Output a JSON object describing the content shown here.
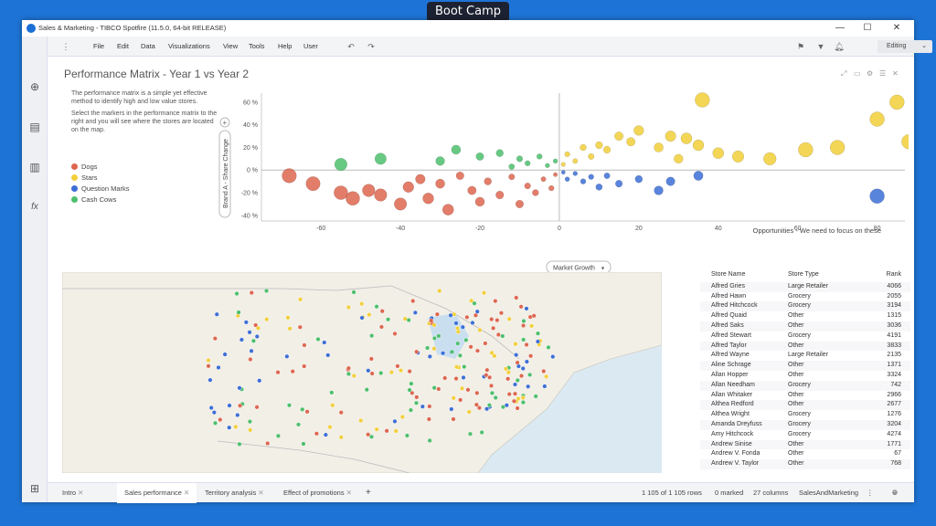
{
  "overlay_title": "Boot Camp",
  "window": {
    "title": "Sales  & Marketing - TIBCO Spotfire (11.5.0, 64-bit RELEASE)",
    "minimize": "—",
    "maximize": "☐",
    "close": "✕"
  },
  "menu": {
    "items": [
      "File",
      "Edit",
      "Data",
      "Visualizations",
      "View",
      "Tools",
      "Help",
      "User"
    ],
    "mode": "Editing"
  },
  "visual": {
    "title": "Performance Matrix - Year 1 vs Year 2",
    "desc1": "The performance matrix is a simple yet effective method to identify high and low value stores.",
    "desc2": "Select the markers in the performance matrix to the right and you will see where the stores are located on the map.",
    "legend": [
      {
        "label": "Dogs",
        "color": "#dd6650"
      },
      {
        "label": "Stars",
        "color": "#f2cf3a"
      },
      {
        "label": "Question Marks",
        "color": "#3c6ed6"
      },
      {
        "label": "Cash Cows",
        "color": "#4cbf6c"
      }
    ],
    "annotation": "Opportunities - We need to focus on these",
    "x_selector": "Market Growth",
    "y_selector": "Brand A - Share Change"
  },
  "chart_data": {
    "type": "scatter",
    "xlabel": "Market Growth",
    "ylabel": "Brand A - Share Change",
    "xlim": [
      -75,
      87
    ],
    "ylim": [
      -45,
      68
    ],
    "x_ticks": [
      "-60",
      "-40",
      "-20",
      "0",
      "20",
      "40",
      "60",
      "80"
    ],
    "y_ticks": [
      "60 %",
      "40 %",
      "20 %",
      "0 %",
      "-20 %",
      "-40 %"
    ],
    "series": [
      {
        "name": "Dogs",
        "points": [
          [
            -68,
            -5
          ],
          [
            -62,
            -12
          ],
          [
            -55,
            -20
          ],
          [
            -52,
            -25
          ],
          [
            -48,
            -18
          ],
          [
            -45,
            -22
          ],
          [
            -40,
            -30
          ],
          [
            -38,
            -15
          ],
          [
            -35,
            -8
          ],
          [
            -33,
            -25
          ],
          [
            -30,
            -12
          ],
          [
            -28,
            -35
          ],
          [
            -25,
            -5
          ],
          [
            -22,
            -18
          ],
          [
            -20,
            -28
          ],
          [
            -18,
            -10
          ],
          [
            -15,
            -22
          ],
          [
            -12,
            -6
          ],
          [
            -10,
            -30
          ],
          [
            -8,
            -14
          ],
          [
            -6,
            -20
          ],
          [
            -4,
            -8
          ],
          [
            -2,
            -16
          ],
          [
            -1,
            -4
          ]
        ]
      },
      {
        "name": "Stars",
        "points": [
          [
            36,
            62
          ],
          [
            85,
            60
          ],
          [
            80,
            45
          ],
          [
            88,
            25
          ],
          [
            53,
            10
          ],
          [
            62,
            18
          ],
          [
            70,
            20
          ],
          [
            40,
            15
          ],
          [
            35,
            22
          ],
          [
            32,
            28
          ],
          [
            28,
            30
          ],
          [
            25,
            20
          ],
          [
            20,
            35
          ],
          [
            18,
            25
          ],
          [
            15,
            30
          ],
          [
            12,
            18
          ],
          [
            10,
            22
          ],
          [
            8,
            12
          ],
          [
            6,
            20
          ],
          [
            4,
            8
          ],
          [
            2,
            14
          ],
          [
            1,
            5
          ],
          [
            30,
            10
          ],
          [
            45,
            12
          ]
        ]
      },
      {
        "name": "Question Marks",
        "points": [
          [
            80,
            -23
          ],
          [
            28,
            -10
          ],
          [
            25,
            -18
          ],
          [
            20,
            -8
          ],
          [
            15,
            -12
          ],
          [
            12,
            -5
          ],
          [
            10,
            -15
          ],
          [
            8,
            -6
          ],
          [
            6,
            -10
          ],
          [
            4,
            -3
          ],
          [
            2,
            -8
          ],
          [
            1,
            -2
          ],
          [
            35,
            -5
          ]
        ]
      },
      {
        "name": "Cash Cows",
        "points": [
          [
            -55,
            5
          ],
          [
            -45,
            10
          ],
          [
            -30,
            8
          ],
          [
            -26,
            18
          ],
          [
            -20,
            12
          ],
          [
            -15,
            15
          ],
          [
            -10,
            10
          ],
          [
            -8,
            6
          ],
          [
            -5,
            12
          ],
          [
            -3,
            4
          ],
          [
            -1,
            8
          ],
          [
            -12,
            3
          ]
        ]
      }
    ]
  },
  "table": {
    "headers": [
      "Store Name",
      "Store Type",
      "Rank"
    ],
    "rows": [
      [
        "Alfred Gries",
        "Large Retailer",
        "4066"
      ],
      [
        "Alfred Hawn",
        "Grocery",
        "2055"
      ],
      [
        "Alfred Hitchcock",
        "Grocery",
        "3194"
      ],
      [
        "Alfred Quaid",
        "Other",
        "1315"
      ],
      [
        "Alfred Saks",
        "Other",
        "3036"
      ],
      [
        "Alfred Stewart",
        "Grocery",
        "4191"
      ],
      [
        "Alfred Taylor",
        "Other",
        "3833"
      ],
      [
        "Alfred Wayne",
        "Large Retailer",
        "2135"
      ],
      [
        "Aline Schrage",
        "Other",
        "1371"
      ],
      [
        "Allan Hopper",
        "Other",
        "3324"
      ],
      [
        "Allan Needham",
        "Grocery",
        "742"
      ],
      [
        "Allan Whitaker",
        "Other",
        "2966"
      ],
      [
        "Althea Redford",
        "Other",
        "2677"
      ],
      [
        "Althea Wright",
        "Grocery",
        "1276"
      ],
      [
        "Amanda Dreyfuss",
        "Grocery",
        "3204"
      ],
      [
        "Amy Hitchcock",
        "Grocery",
        "4274"
      ],
      [
        "Andrew Sinise",
        "Other",
        "1771"
      ],
      [
        "Andrew V. Fonda",
        "Other",
        "67"
      ],
      [
        "Andrew V. Taylor",
        "Other",
        "768"
      ]
    ]
  },
  "tabs": [
    "Intro",
    "Sales performance",
    "Territory analysis",
    "Effect of promotions"
  ],
  "status": {
    "rows": "1 105 of 1 105 rows",
    "marked": "0 marked",
    "columns": "27 columns",
    "table": "SalesAndMarketing"
  }
}
